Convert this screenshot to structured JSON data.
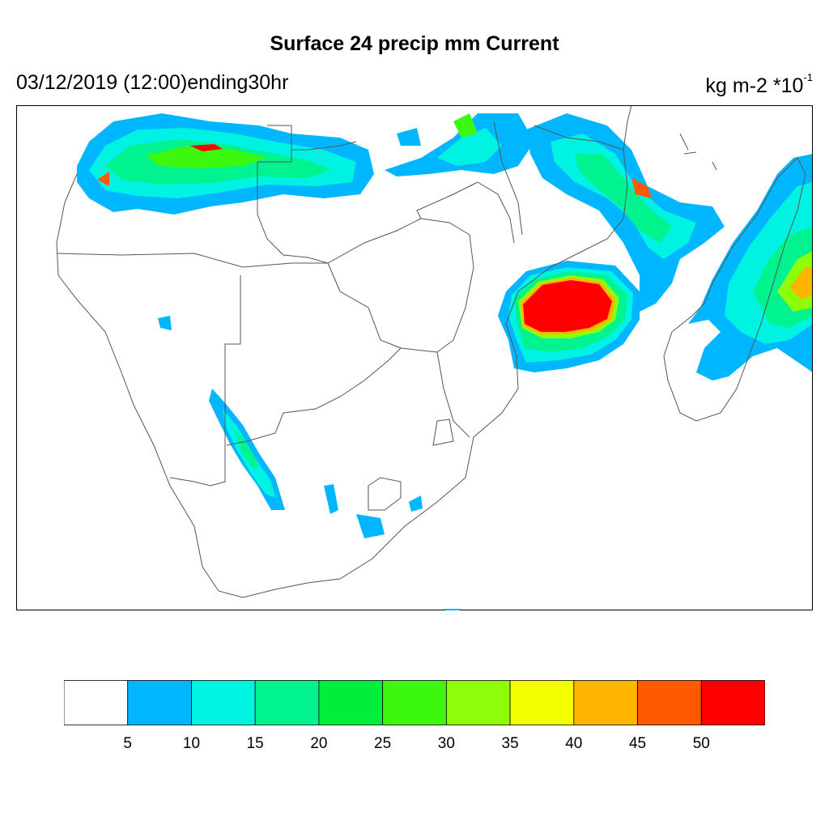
{
  "header": {
    "title": "Surface 24 precip mm Current",
    "date_label": "03/12/2019 (12:00)ending30hr",
    "unit_label": "kg m-2 *10",
    "unit_exponent": "-1"
  },
  "legend": {
    "colors": [
      "#ffffff",
      "#00b7ff",
      "#00f2e2",
      "#00f38f",
      "#00ee3c",
      "#3cf80f",
      "#8dfd0c",
      "#f4ff00",
      "#ffb400",
      "#ff5a00",
      "#ff0000"
    ],
    "ticks": [
      "5",
      "10",
      "15",
      "20",
      "25",
      "30",
      "35",
      "40",
      "45",
      "50"
    ]
  },
  "colors": {
    "coastline": "#555555",
    "frame": "#000000"
  }
}
